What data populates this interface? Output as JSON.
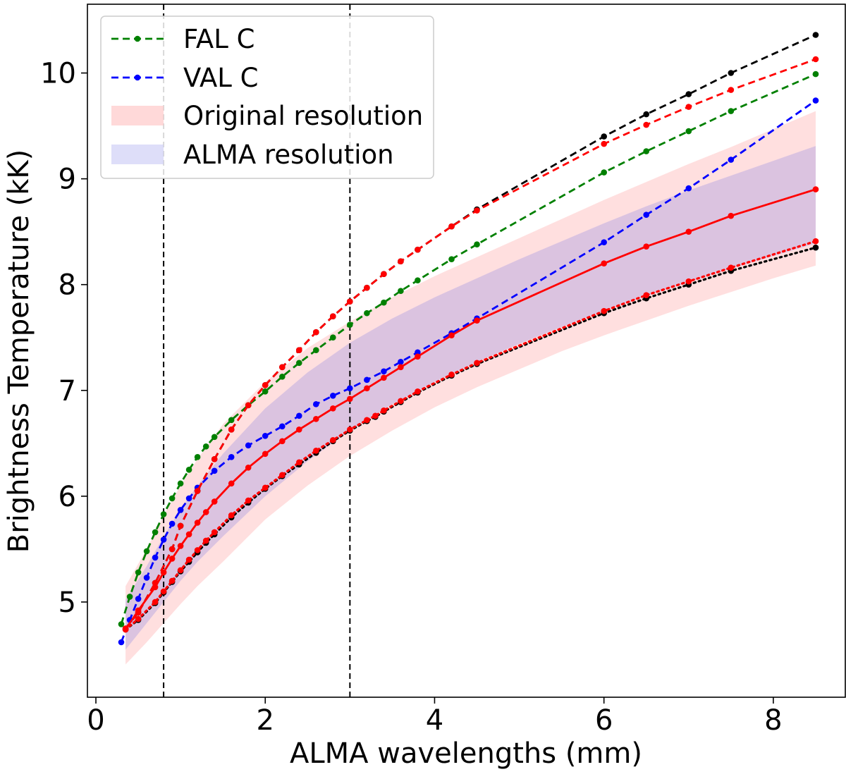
{
  "chart_data": {
    "type": "line",
    "title": "",
    "xlabel": "ALMA wavelengths (mm)",
    "ylabel": "Brightness Temperature (kK)",
    "xlim": [
      -0.1,
      8.85
    ],
    "ylim": [
      4.1,
      10.65
    ],
    "xticks": [
      0,
      2,
      4,
      6,
      8
    ],
    "yticks": [
      5,
      6,
      7,
      8,
      9,
      10
    ],
    "grid": false,
    "legend_position": "upper-left",
    "vlines": [
      0.8,
      3.0
    ],
    "legend": [
      {
        "label": "FAL C",
        "kind": "line",
        "color": "#008000"
      },
      {
        "label": "VAL C",
        "kind": "line",
        "color": "#0000ff"
      },
      {
        "label": "Original resolution",
        "kind": "band",
        "color": "#ffc0c0"
      },
      {
        "label": "ALMA resolution",
        "kind": "band",
        "color": "#c8c8f5"
      }
    ],
    "bands": [
      {
        "name": "Original resolution",
        "color": "#ff9a9a",
        "opacity": 0.32,
        "x": [
          0.35,
          0.6,
          0.8,
          1.0,
          1.2,
          1.5,
          2.0,
          2.5,
          3.0,
          3.5,
          4.0,
          4.5,
          5.0,
          5.5,
          6.0,
          6.5,
          7.0,
          7.5,
          8.0,
          8.5
        ],
        "upper": [
          5.15,
          5.5,
          5.82,
          6.1,
          6.35,
          6.68,
          7.08,
          7.4,
          7.65,
          7.88,
          8.08,
          8.26,
          8.44,
          8.62,
          8.8,
          8.97,
          9.14,
          9.3,
          9.47,
          9.64
        ],
        "lower": [
          4.41,
          4.62,
          4.8,
          4.98,
          5.15,
          5.38,
          5.78,
          6.1,
          6.38,
          6.62,
          6.84,
          7.03,
          7.2,
          7.37,
          7.52,
          7.66,
          7.8,
          7.93,
          8.06,
          8.18
        ]
      },
      {
        "name": "ALMA resolution",
        "color": "#7a7ae6",
        "opacity": 0.27,
        "x": [
          0.35,
          0.6,
          0.8,
          1.0,
          1.2,
          1.5,
          2.0,
          2.5,
          3.0,
          3.5,
          4.0,
          4.5,
          5.0,
          5.5,
          6.0,
          6.5,
          7.0,
          7.5,
          8.0,
          8.5
        ],
        "upper": [
          5.02,
          5.34,
          5.62,
          5.88,
          6.1,
          6.4,
          6.83,
          7.17,
          7.45,
          7.68,
          7.88,
          8.06,
          8.24,
          8.41,
          8.58,
          8.74,
          8.89,
          9.03,
          9.17,
          9.31
        ],
        "lower": [
          4.55,
          4.8,
          5.0,
          5.2,
          5.38,
          5.62,
          6.0,
          6.33,
          6.62,
          6.87,
          7.08,
          7.27,
          7.44,
          7.6,
          7.75,
          7.89,
          8.02,
          8.15,
          8.27,
          8.39
        ]
      }
    ],
    "series": [
      {
        "name": "FAL C",
        "color": "#008000",
        "dash": "dashed",
        "x": [
          0.3,
          0.4,
          0.5,
          0.6,
          0.7,
          0.8,
          0.9,
          1.0,
          1.1,
          1.2,
          1.3,
          1.4,
          1.6,
          1.8,
          2.0,
          2.2,
          2.4,
          2.6,
          2.8,
          3.0,
          3.2,
          3.4,
          3.6,
          3.8,
          4.2,
          4.5,
          6.0,
          6.5,
          7.0,
          7.5,
          8.5
        ],
        "y": [
          4.79,
          5.05,
          5.28,
          5.48,
          5.66,
          5.83,
          5.98,
          6.12,
          6.25,
          6.37,
          6.47,
          6.56,
          6.72,
          6.86,
          6.99,
          7.13,
          7.26,
          7.38,
          7.5,
          7.62,
          7.73,
          7.83,
          7.94,
          8.04,
          8.24,
          8.38,
          9.06,
          9.26,
          9.45,
          9.64,
          9.99
        ]
      },
      {
        "name": "VAL C",
        "color": "#0000ff",
        "dash": "dashed",
        "x": [
          0.3,
          0.4,
          0.5,
          0.6,
          0.7,
          0.8,
          0.9,
          1.0,
          1.1,
          1.2,
          1.4,
          1.6,
          1.8,
          2.0,
          2.2,
          2.4,
          2.6,
          2.8,
          3.0,
          3.2,
          3.4,
          3.6,
          3.8,
          4.2,
          4.5,
          6.0,
          6.5,
          7.0,
          7.5,
          8.5
        ],
        "y": [
          4.62,
          4.83,
          5.03,
          5.23,
          5.42,
          5.59,
          5.74,
          5.87,
          5.98,
          6.08,
          6.24,
          6.37,
          6.48,
          6.57,
          6.66,
          6.76,
          6.87,
          6.95,
          7.02,
          7.1,
          7.18,
          7.27,
          7.36,
          7.54,
          7.68,
          8.4,
          8.66,
          8.91,
          9.18,
          9.74
        ]
      },
      {
        "name": "",
        "color": "#000000",
        "dash": "dashed",
        "x": [
          0.35,
          0.5,
          0.7,
          0.9,
          1.0,
          1.2,
          1.4,
          1.6,
          1.8,
          2.0,
          2.2,
          2.4,
          2.6,
          2.8,
          3.0,
          3.2,
          3.4,
          3.6,
          3.8,
          4.2,
          4.5,
          6.0,
          6.5,
          7.0,
          7.5,
          8.5
        ],
        "y": [
          4.75,
          4.9,
          5.18,
          5.5,
          5.72,
          6.05,
          6.35,
          6.63,
          6.86,
          7.05,
          7.22,
          7.38,
          7.55,
          7.7,
          7.84,
          7.97,
          8.1,
          8.22,
          8.33,
          8.55,
          8.71,
          9.4,
          9.61,
          9.8,
          10.0,
          10.36
        ]
      },
      {
        "name": "",
        "color": "#ff0000",
        "dash": "dashed",
        "x": [
          0.35,
          0.5,
          0.7,
          0.9,
          1.0,
          1.2,
          1.4,
          1.6,
          1.8,
          2.0,
          2.2,
          2.4,
          2.6,
          2.8,
          3.0,
          3.2,
          3.4,
          3.6,
          3.8,
          4.2,
          4.5,
          6.0,
          6.5,
          7.0,
          7.5,
          8.5
        ],
        "y": [
          4.75,
          4.9,
          5.18,
          5.5,
          5.72,
          6.05,
          6.35,
          6.63,
          6.86,
          7.05,
          7.22,
          7.38,
          7.55,
          7.7,
          7.84,
          7.97,
          8.1,
          8.22,
          8.33,
          8.55,
          8.7,
          9.33,
          9.51,
          9.68,
          9.84,
          10.13
        ]
      },
      {
        "name": "",
        "color": "#ff0000",
        "dash": "solid",
        "x": [
          0.35,
          0.5,
          0.7,
          0.8,
          0.9,
          1.0,
          1.1,
          1.2,
          1.3,
          1.4,
          1.6,
          1.8,
          2.0,
          2.2,
          2.4,
          2.6,
          2.8,
          3.0,
          3.2,
          3.4,
          3.6,
          3.8,
          4.2,
          4.5,
          6.0,
          6.5,
          7.0,
          7.5,
          8.5
        ],
        "y": [
          4.74,
          4.92,
          5.14,
          5.28,
          5.41,
          5.53,
          5.64,
          5.75,
          5.85,
          5.95,
          6.12,
          6.27,
          6.4,
          6.52,
          6.63,
          6.73,
          6.83,
          6.92,
          7.02,
          7.12,
          7.22,
          7.32,
          7.52,
          7.66,
          8.2,
          8.36,
          8.5,
          8.65,
          8.9
        ]
      },
      {
        "name": "",
        "color": "#ff0000",
        "dash": "dotted",
        "x": [
          0.35,
          0.5,
          0.7,
          0.8,
          0.9,
          1.0,
          1.1,
          1.2,
          1.3,
          1.4,
          1.6,
          1.8,
          2.0,
          2.2,
          2.4,
          2.6,
          2.8,
          3.0,
          3.2,
          3.3,
          3.4,
          3.6,
          3.8,
          4.2,
          4.5,
          6.0,
          6.5,
          7.0,
          7.5,
          8.5
        ],
        "y": [
          4.74,
          4.84,
          5.0,
          5.1,
          5.2,
          5.3,
          5.4,
          5.49,
          5.58,
          5.66,
          5.82,
          5.96,
          6.08,
          6.2,
          6.32,
          6.43,
          6.53,
          6.63,
          6.72,
          6.76,
          6.81,
          6.9,
          6.99,
          7.15,
          7.26,
          7.75,
          7.9,
          8.03,
          8.16,
          8.41
        ]
      },
      {
        "name": "",
        "color": "#000000",
        "dash": "dotted",
        "x": [
          0.35,
          0.5,
          0.7,
          0.8,
          0.9,
          1.0,
          1.1,
          1.2,
          1.3,
          1.4,
          1.6,
          1.8,
          2.0,
          2.2,
          2.4,
          2.6,
          2.8,
          3.0,
          3.2,
          3.3,
          3.4,
          3.6,
          3.8,
          4.2,
          4.5,
          6.0,
          6.5,
          7.0,
          7.5,
          8.5
        ],
        "y": [
          4.74,
          4.83,
          4.99,
          5.09,
          5.19,
          5.29,
          5.38,
          5.47,
          5.56,
          5.64,
          5.8,
          5.94,
          6.07,
          6.19,
          6.3,
          6.41,
          6.52,
          6.62,
          6.71,
          6.75,
          6.8,
          6.89,
          6.98,
          7.14,
          7.25,
          7.73,
          7.87,
          8.0,
          8.13,
          8.35
        ]
      }
    ]
  }
}
